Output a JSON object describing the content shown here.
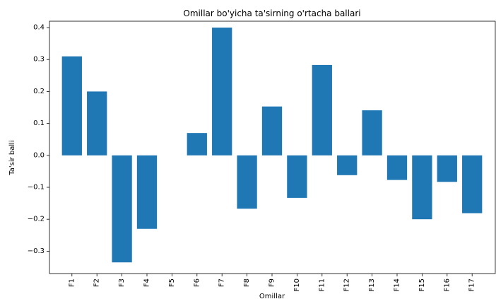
{
  "chart_data": {
    "type": "bar",
    "title": "Omillar bo'yicha ta'sirning o'rtacha ballari",
    "xlabel": "Omillar",
    "ylabel": "Ta'sir balli",
    "categories": [
      "F1",
      "F2",
      "F3",
      "F4",
      "F5",
      "F6",
      "F7",
      "F8",
      "F9",
      "F10",
      "F11",
      "F12",
      "F13",
      "F14",
      "F15",
      "F16",
      "F17"
    ],
    "values": [
      0.31,
      0.2,
      -0.335,
      -0.23,
      0.0,
      0.07,
      0.4,
      -0.167,
      0.153,
      -0.133,
      0.283,
      -0.062,
      0.141,
      -0.077,
      -0.2,
      -0.083,
      -0.181
    ],
    "ylim": [
      -0.37,
      0.42
    ],
    "yticks": [
      -0.3,
      -0.2,
      -0.1,
      0.0,
      0.1,
      0.2,
      0.3,
      0.4
    ],
    "ytick_labels": [
      "−0.3",
      "−0.2",
      "−0.1",
      "0.0",
      "0.1",
      "0.2",
      "0.3",
      "0.4"
    ],
    "bar_color": "#1f77b4",
    "grid": false,
    "legend": "none"
  }
}
